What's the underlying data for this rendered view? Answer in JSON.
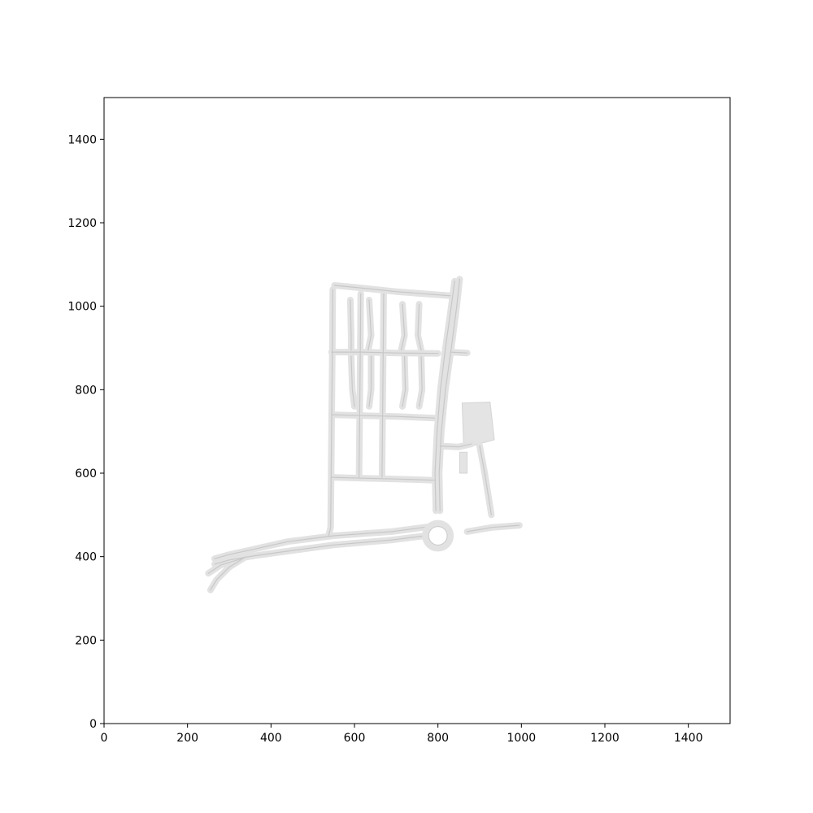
{
  "chart_data": {
    "type": "map",
    "title": "",
    "xlabel": "",
    "ylabel": "",
    "xlim": [
      0,
      1500
    ],
    "ylim": [
      0,
      1500
    ],
    "x_ticks": [
      0,
      200,
      400,
      600,
      800,
      1000,
      1200,
      1400
    ],
    "y_ticks": [
      0,
      200,
      400,
      600,
      800,
      1000,
      1200,
      1400
    ],
    "grid": false,
    "colors": {
      "roads": "#e2e2e2",
      "road_edges": "#c8c8c8",
      "axes": "#000000"
    },
    "roads": [
      {
        "name": "north-road",
        "points": [
          [
            552,
            1050
          ],
          [
            605,
            1045
          ],
          [
            700,
            1035
          ],
          [
            790,
            1028
          ],
          [
            830,
            1025
          ]
        ]
      },
      {
        "name": "west-road",
        "points": [
          [
            548,
            1040
          ],
          [
            547,
            900
          ],
          [
            546,
            800
          ],
          [
            545,
            700
          ],
          [
            544,
            600
          ],
          [
            543,
            470
          ],
          [
            538,
            450
          ]
        ]
      },
      {
        "name": "cross-street-890",
        "points": [
          [
            545,
            890
          ],
          [
            620,
            890
          ],
          [
            700,
            888
          ],
          [
            800,
            887
          ]
        ]
      },
      {
        "name": "cross-street-740",
        "points": [
          [
            545,
            740
          ],
          [
            620,
            738
          ],
          [
            700,
            736
          ],
          [
            792,
            732
          ]
        ]
      },
      {
        "name": "cross-street-590",
        "points": [
          [
            545,
            590
          ],
          [
            620,
            588
          ],
          [
            700,
            586
          ],
          [
            792,
            583
          ]
        ]
      },
      {
        "name": "avenue-615",
        "points": [
          [
            615,
            1030
          ],
          [
            614,
            900
          ],
          [
            613,
            800
          ],
          [
            612,
            700
          ],
          [
            611,
            590
          ]
        ]
      },
      {
        "name": "avenue-668",
        "points": [
          [
            670,
            1030
          ],
          [
            669,
            900
          ],
          [
            668,
            800
          ],
          [
            667,
            700
          ],
          [
            666,
            590
          ]
        ]
      },
      {
        "name": "lane-590",
        "points": [
          [
            590,
            1015
          ],
          [
            592,
            930
          ],
          [
            592,
            895
          ]
        ]
      },
      {
        "name": "lane-635",
        "points": [
          [
            635,
            1015
          ],
          [
            640,
            930
          ],
          [
            633,
            895
          ]
        ]
      },
      {
        "name": "lane-715",
        "points": [
          [
            715,
            1005
          ],
          [
            720,
            930
          ],
          [
            712,
            895
          ]
        ]
      },
      {
        "name": "lane-755",
        "points": [
          [
            755,
            1005
          ],
          [
            752,
            930
          ],
          [
            760,
            895
          ]
        ]
      },
      {
        "name": "lane-590b",
        "points": [
          [
            592,
            880
          ],
          [
            595,
            800
          ],
          [
            600,
            760
          ]
        ]
      },
      {
        "name": "lane-640b",
        "points": [
          [
            640,
            880
          ],
          [
            640,
            800
          ],
          [
            635,
            760
          ]
        ]
      },
      {
        "name": "lane-720b",
        "points": [
          [
            720,
            880
          ],
          [
            722,
            800
          ],
          [
            715,
            760
          ]
        ]
      },
      {
        "name": "lane-760b",
        "points": [
          [
            760,
            880
          ],
          [
            762,
            800
          ],
          [
            755,
            760
          ]
        ]
      },
      {
        "name": "main-avenue-east",
        "points": [
          [
            852,
            1065
          ],
          [
            845,
            1000
          ],
          [
            832,
            900
          ],
          [
            818,
            800
          ],
          [
            808,
            700
          ],
          [
            803,
            600
          ],
          [
            805,
            510
          ]
        ]
      },
      {
        "name": "main-avenue-west",
        "points": [
          [
            840,
            1060
          ],
          [
            832,
            1000
          ],
          [
            818,
            900
          ],
          [
            806,
            800
          ],
          [
            798,
            700
          ],
          [
            793,
            600
          ],
          [
            795,
            510
          ]
        ]
      },
      {
        "name": "east-spur-880",
        "points": [
          [
            830,
            890
          ],
          [
            870,
            888
          ]
        ]
      },
      {
        "name": "spur-to-parking",
        "points": [
          [
            805,
            665
          ],
          [
            850,
            663
          ],
          [
            880,
            670
          ]
        ]
      },
      {
        "name": "parking-road",
        "points": [
          [
            900,
            665
          ],
          [
            912,
            600
          ],
          [
            928,
            500
          ]
        ]
      },
      {
        "name": "coastal-road",
        "points": [
          [
            265,
            395
          ],
          [
            300,
            405
          ],
          [
            360,
            418
          ],
          [
            440,
            436
          ],
          [
            550,
            450
          ],
          [
            690,
            460
          ],
          [
            780,
            472
          ]
        ]
      },
      {
        "name": "coastal-road-lower",
        "points": [
          [
            265,
            382
          ],
          [
            300,
            392
          ],
          [
            360,
            402
          ],
          [
            460,
            416
          ],
          [
            550,
            428
          ],
          [
            690,
            440
          ],
          [
            770,
            450
          ]
        ]
      },
      {
        "name": "coastal-spur",
        "points": [
          [
            250,
            360
          ],
          [
            280,
            380
          ],
          [
            330,
            395
          ]
        ]
      },
      {
        "name": "coastal-curve",
        "points": [
          [
            255,
            320
          ],
          [
            270,
            345
          ],
          [
            300,
            375
          ],
          [
            340,
            400
          ]
        ]
      },
      {
        "name": "east-road",
        "points": [
          [
            870,
            460
          ],
          [
            930,
            470
          ],
          [
            995,
            475
          ]
        ]
      }
    ],
    "roundabout": {
      "center": [
        800,
        450
      ],
      "radius": 30
    },
    "areas": [
      {
        "name": "parking-lot",
        "points": [
          [
            858,
            768
          ],
          [
            925,
            770
          ],
          [
            935,
            680
          ],
          [
            862,
            660
          ]
        ]
      },
      {
        "name": "block-west",
        "points": [
          [
            852,
            650
          ],
          [
            870,
            650
          ],
          [
            870,
            600
          ],
          [
            852,
            600
          ]
        ]
      }
    ]
  }
}
